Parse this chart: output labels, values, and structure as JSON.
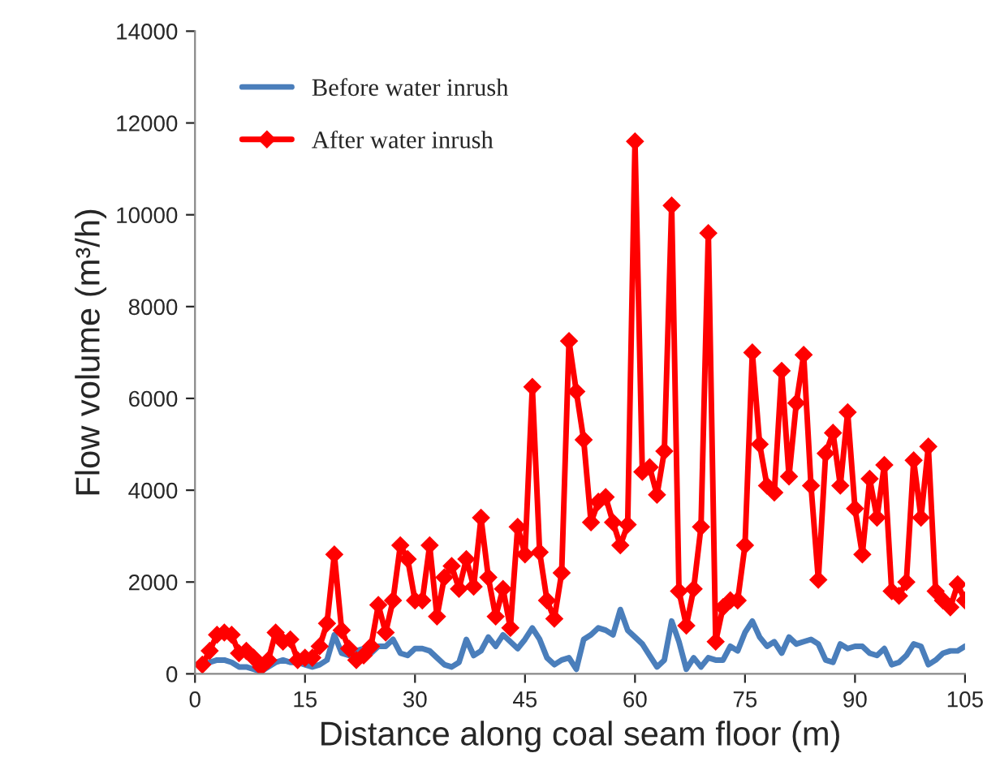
{
  "chart_data": {
    "type": "line",
    "xlabel": "Distance along coal seam floor (m)",
    "ylabel": "Flow volume (m³/h)",
    "x": [
      1,
      2,
      3,
      4,
      5,
      6,
      7,
      8,
      9,
      10,
      11,
      12,
      13,
      14,
      15,
      16,
      17,
      18,
      19,
      20,
      21,
      22,
      23,
      24,
      25,
      26,
      27,
      28,
      29,
      30,
      31,
      32,
      33,
      34,
      35,
      36,
      37,
      38,
      39,
      40,
      41,
      42,
      43,
      44,
      45,
      46,
      47,
      48,
      49,
      50,
      51,
      52,
      53,
      54,
      55,
      56,
      57,
      58,
      59,
      60,
      61,
      62,
      63,
      64,
      65,
      66,
      67,
      68,
      69,
      70,
      71,
      72,
      73,
      74,
      75,
      76,
      77,
      78,
      79,
      80,
      81,
      82,
      83,
      84,
      85,
      86,
      87,
      88,
      89,
      90,
      91,
      92,
      93,
      94,
      95,
      96,
      97,
      98,
      99,
      100,
      101,
      102,
      103,
      104,
      105
    ],
    "series": [
      {
        "name": "Before water inrush",
        "color": "#4a7ebb",
        "marker": "none",
        "values": [
          200,
          250,
          300,
          300,
          250,
          150,
          150,
          100,
          50,
          150,
          250,
          300,
          250,
          250,
          200,
          150,
          200,
          300,
          850,
          450,
          400,
          500,
          550,
          450,
          600,
          600,
          750,
          450,
          400,
          550,
          550,
          500,
          350,
          200,
          150,
          250,
          750,
          400,
          500,
          800,
          600,
          850,
          700,
          550,
          750,
          1000,
          750,
          350,
          200,
          300,
          350,
          100,
          750,
          850,
          1000,
          950,
          850,
          1400,
          950,
          800,
          650,
          400,
          150,
          300,
          1150,
          700,
          100,
          350,
          150,
          350,
          300,
          300,
          600,
          500,
          900,
          1150,
          800,
          600,
          700,
          450,
          800,
          650,
          700,
          750,
          650,
          300,
          250,
          650,
          550,
          600,
          600,
          450,
          400,
          550,
          200,
          250,
          400,
          650,
          600,
          200,
          300,
          450,
          500,
          500,
          600
        ]
      },
      {
        "name": "After water inrush",
        "color": "#ff0000",
        "marker": "diamond",
        "values": [
          200,
          500,
          850,
          900,
          850,
          450,
          500,
          350,
          150,
          300,
          900,
          700,
          750,
          300,
          350,
          350,
          600,
          1100,
          2600,
          950,
          550,
          300,
          400,
          600,
          1500,
          900,
          1600,
          2800,
          2500,
          1600,
          1600,
          2800,
          1250,
          2100,
          2350,
          1850,
          2500,
          1900,
          3400,
          2100,
          1250,
          1850,
          1000,
          3200,
          2600,
          6250,
          2650,
          1600,
          1200,
          2200,
          7250,
          6150,
          5100,
          3300,
          3750,
          3850,
          3300,
          2800,
          3250,
          11600,
          4400,
          4500,
          3900,
          4850,
          10200,
          1800,
          1050,
          1850,
          3200,
          9600,
          700,
          1450,
          1600,
          1600,
          2800,
          7000,
          5000,
          4100,
          3950,
          6600,
          4300,
          5900,
          6950,
          4100,
          2050,
          4800,
          5250,
          4100,
          5700,
          3600,
          2600,
          4250,
          3400,
          4550,
          1800,
          1700,
          2000,
          4650,
          3400,
          4950,
          1800,
          1600,
          1450,
          1950,
          1600
        ]
      }
    ],
    "xlim": [
      0,
      105
    ],
    "xticks": [
      0,
      15,
      30,
      45,
      60,
      75,
      90,
      105
    ],
    "ylim": [
      0,
      14000
    ],
    "yticks": [
      0,
      2000,
      4000,
      6000,
      8000,
      10000,
      12000,
      14000
    ],
    "grid": false,
    "legend": "top left"
  }
}
